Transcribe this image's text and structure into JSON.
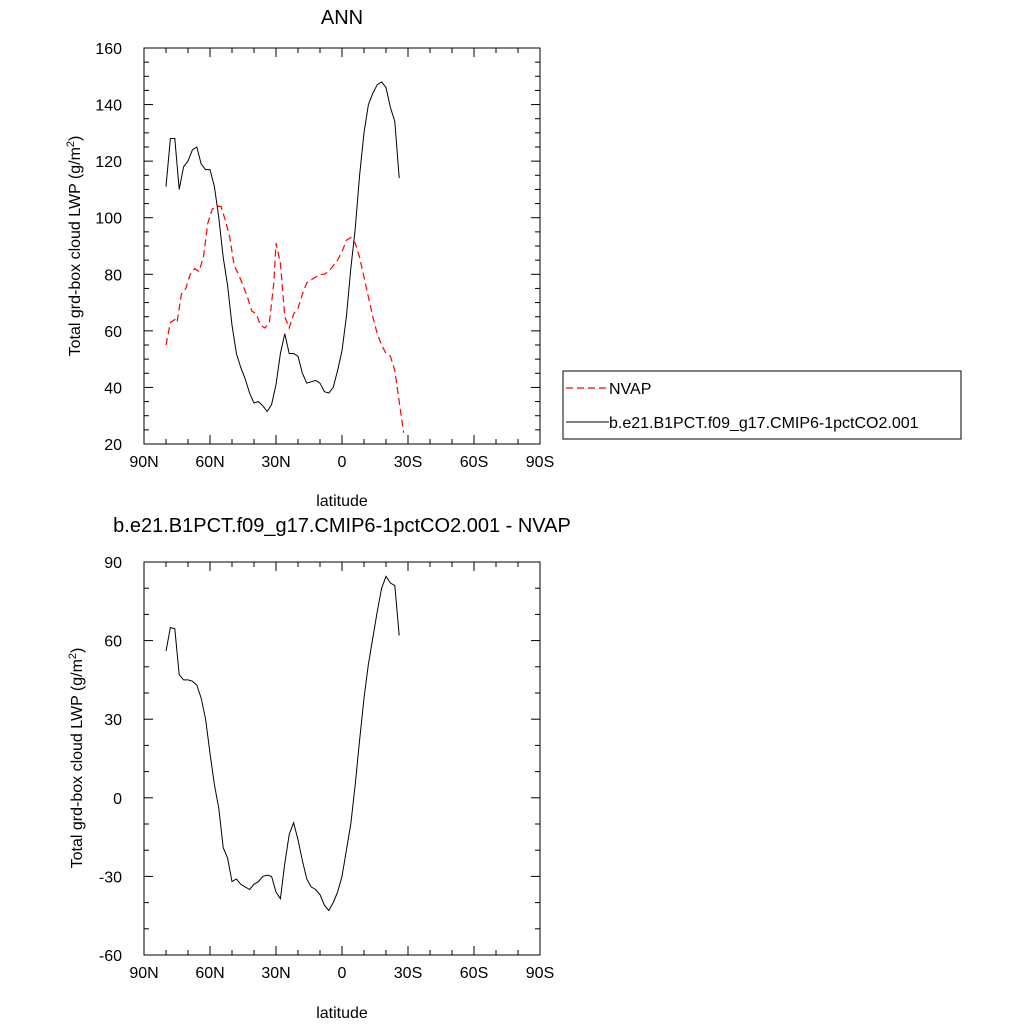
{
  "chart_data": [
    {
      "type": "line",
      "title": "ANN",
      "xlabel": "latitude",
      "ylabel_main": "Total grd-box cloud LWP (g/m",
      "ylabel_sup": "2",
      "ylabel_close": ")",
      "xlim": [
        90,
        -90
      ],
      "ylim": [
        20,
        160
      ],
      "xticks": [
        {
          "v": 90,
          "label": "90N"
        },
        {
          "v": 60,
          "label": "60N"
        },
        {
          "v": 30,
          "label": "30N"
        },
        {
          "v": 0,
          "label": "0"
        },
        {
          "v": -30,
          "label": "30S"
        },
        {
          "v": -60,
          "label": "60S"
        },
        {
          "v": -90,
          "label": "90S"
        }
      ],
      "yticks": [
        {
          "v": 20,
          "label": "20"
        },
        {
          "v": 40,
          "label": "40"
        },
        {
          "v": 60,
          "label": "60"
        },
        {
          "v": 80,
          "label": "80"
        },
        {
          "v": 100,
          "label": "100"
        },
        {
          "v": 120,
          "label": "120"
        },
        {
          "v": 140,
          "label": "140"
        },
        {
          "v": 160,
          "label": "160"
        }
      ],
      "legend_position": "right",
      "series": [
        {
          "name": "NVAP",
          "color": "#ff0000",
          "dash": "dashed",
          "points": [
            [
              80,
              55
            ],
            [
              78,
              63
            ],
            [
              76,
              64
            ],
            [
              75,
              63
            ],
            [
              73,
              73
            ],
            [
              71,
              75
            ],
            [
              69,
              80
            ],
            [
              67,
              82
            ],
            [
              65,
              81
            ],
            [
              63,
              86
            ],
            [
              61,
              98
            ],
            [
              59,
              103
            ],
            [
              57,
              104
            ],
            [
              55,
              104
            ],
            [
              53,
              99
            ],
            [
              51,
              93
            ],
            [
              49,
              83
            ],
            [
              47,
              80
            ],
            [
              45,
              76
            ],
            [
              43,
              72
            ],
            [
              41,
              67
            ],
            [
              39,
              66
            ],
            [
              37,
              62
            ],
            [
              35,
              61
            ],
            [
              33,
              63
            ],
            [
              31,
              77
            ],
            [
              30,
              91
            ],
            [
              28,
              84
            ],
            [
              26,
              65
            ],
            [
              24,
              61
            ],
            [
              22,
              66
            ],
            [
              20,
              68
            ],
            [
              18,
              73
            ],
            [
              16,
              77
            ],
            [
              14,
              78
            ],
            [
              12,
              79
            ],
            [
              10,
              80
            ],
            [
              8,
              80
            ],
            [
              6,
              81
            ],
            [
              4,
              83
            ],
            [
              2,
              85
            ],
            [
              0,
              88
            ],
            [
              -2,
              92
            ],
            [
              -4,
              93
            ],
            [
              -6,
              91
            ],
            [
              -8,
              86
            ],
            [
              -10,
              79
            ],
            [
              -12,
              72
            ],
            [
              -14,
              65
            ],
            [
              -16,
              59
            ],
            [
              -18,
              55
            ],
            [
              -20,
              52
            ],
            [
              -22,
              51
            ],
            [
              -24,
              46
            ],
            [
              -26,
              35
            ],
            [
              -28,
              24
            ]
          ]
        },
        {
          "name": "b.e21.B1PCT.f09_g17.CMIP6-1pctCO2.001",
          "color": "#000000",
          "dash": "solid",
          "points": [
            [
              80,
              111
            ],
            [
              78,
              128
            ],
            [
              76,
              128
            ],
            [
              74,
              110
            ],
            [
              72,
              118
            ],
            [
              70,
              120
            ],
            [
              68,
              124
            ],
            [
              66,
              125
            ],
            [
              64,
              119
            ],
            [
              62,
              117
            ],
            [
              60,
              117
            ],
            [
              58,
              111
            ],
            [
              56,
              100
            ],
            [
              54,
              86
            ],
            [
              52,
              76
            ],
            [
              50,
              62
            ],
            [
              48,
              52
            ],
            [
              46,
              47
            ],
            [
              44,
              43
            ],
            [
              42,
              38
            ],
            [
              40,
              34.5
            ],
            [
              38,
              35
            ],
            [
              36,
              33.5
            ],
            [
              34,
              31.5
            ],
            [
              32,
              34
            ],
            [
              30,
              41
            ],
            [
              28,
              52
            ],
            [
              26,
              59
            ],
            [
              24,
              52
            ],
            [
              22,
              52
            ],
            [
              20,
              51
            ],
            [
              18,
              45
            ],
            [
              16,
              41.5
            ],
            [
              14,
              42
            ],
            [
              12,
              42.5
            ],
            [
              10,
              41.5
            ],
            [
              8,
              38.5
            ],
            [
              6,
              38
            ],
            [
              4,
              40
            ],
            [
              2,
              46
            ],
            [
              0,
              53
            ],
            [
              -2,
              65
            ],
            [
              -4,
              82
            ],
            [
              -6,
              96
            ],
            [
              -8,
              115
            ],
            [
              -10,
              130
            ],
            [
              -12,
              140
            ],
            [
              -14,
              144
            ],
            [
              -16,
              147
            ],
            [
              -18,
              148
            ],
            [
              -20,
              146
            ],
            [
              -22,
              139
            ],
            [
              -24,
              134
            ],
            [
              -26,
              114
            ]
          ]
        }
      ]
    },
    {
      "type": "line",
      "title": "b.e21.B1PCT.f09_g17.CMIP6-1pctCO2.001 - NVAP",
      "xlabel": "latitude",
      "ylabel_main": "Total grd-box cloud LWP (g/m",
      "ylabel_sup": "2",
      "ylabel_close": ")",
      "xlim": [
        90,
        -90
      ],
      "ylim": [
        -60,
        90
      ],
      "xticks": [
        {
          "v": 90,
          "label": "90N"
        },
        {
          "v": 60,
          "label": "60N"
        },
        {
          "v": 30,
          "label": "30N"
        },
        {
          "v": 0,
          "label": "0"
        },
        {
          "v": -30,
          "label": "30S"
        },
        {
          "v": -60,
          "label": "60S"
        },
        {
          "v": -90,
          "label": "90S"
        }
      ],
      "yticks": [
        {
          "v": -60,
          "label": "-60"
        },
        {
          "v": -30,
          "label": "-30"
        },
        {
          "v": 0,
          "label": "0"
        },
        {
          "v": 30,
          "label": "30"
        },
        {
          "v": 60,
          "label": "60"
        },
        {
          "v": 90,
          "label": "90"
        }
      ],
      "series": [
        {
          "name": "",
          "color": "#000000",
          "dash": "solid",
          "points": [
            [
              80,
              56
            ],
            [
              78,
              65
            ],
            [
              76,
              64.5
            ],
            [
              74,
              47
            ],
            [
              72,
              45
            ],
            [
              70,
              45
            ],
            [
              68,
              44.5
            ],
            [
              66,
              43
            ],
            [
              64,
              38
            ],
            [
              62,
              30
            ],
            [
              60,
              17
            ],
            [
              58,
              5
            ],
            [
              56,
              -4
            ],
            [
              54,
              -19
            ],
            [
              52,
              -23
            ],
            [
              50,
              -32
            ],
            [
              48,
              -31
            ],
            [
              46,
              -33
            ],
            [
              44,
              -34
            ],
            [
              42,
              -35
            ],
            [
              40,
              -33
            ],
            [
              38,
              -32
            ],
            [
              36,
              -30
            ],
            [
              34,
              -29.5
            ],
            [
              32,
              -30
            ],
            [
              30,
              -36
            ],
            [
              28,
              -38.5
            ],
            [
              26,
              -25
            ],
            [
              24,
              -14
            ],
            [
              22,
              -9.5
            ],
            [
              20,
              -16
            ],
            [
              18,
              -24
            ],
            [
              16,
              -31
            ],
            [
              14,
              -34
            ],
            [
              12,
              -35
            ],
            [
              10,
              -37
            ],
            [
              8,
              -41
            ],
            [
              6,
              -43
            ],
            [
              4,
              -40
            ],
            [
              2,
              -36
            ],
            [
              0,
              -30
            ],
            [
              -2,
              -20
            ],
            [
              -4,
              -10
            ],
            [
              -6,
              5
            ],
            [
              -8,
              22
            ],
            [
              -10,
              38
            ],
            [
              -12,
              51
            ],
            [
              -14,
              61
            ],
            [
              -16,
              71
            ],
            [
              -18,
              80
            ],
            [
              -20,
              84.5
            ],
            [
              -22,
              82
            ],
            [
              -24,
              81
            ],
            [
              -26,
              62
            ]
          ]
        }
      ]
    }
  ]
}
